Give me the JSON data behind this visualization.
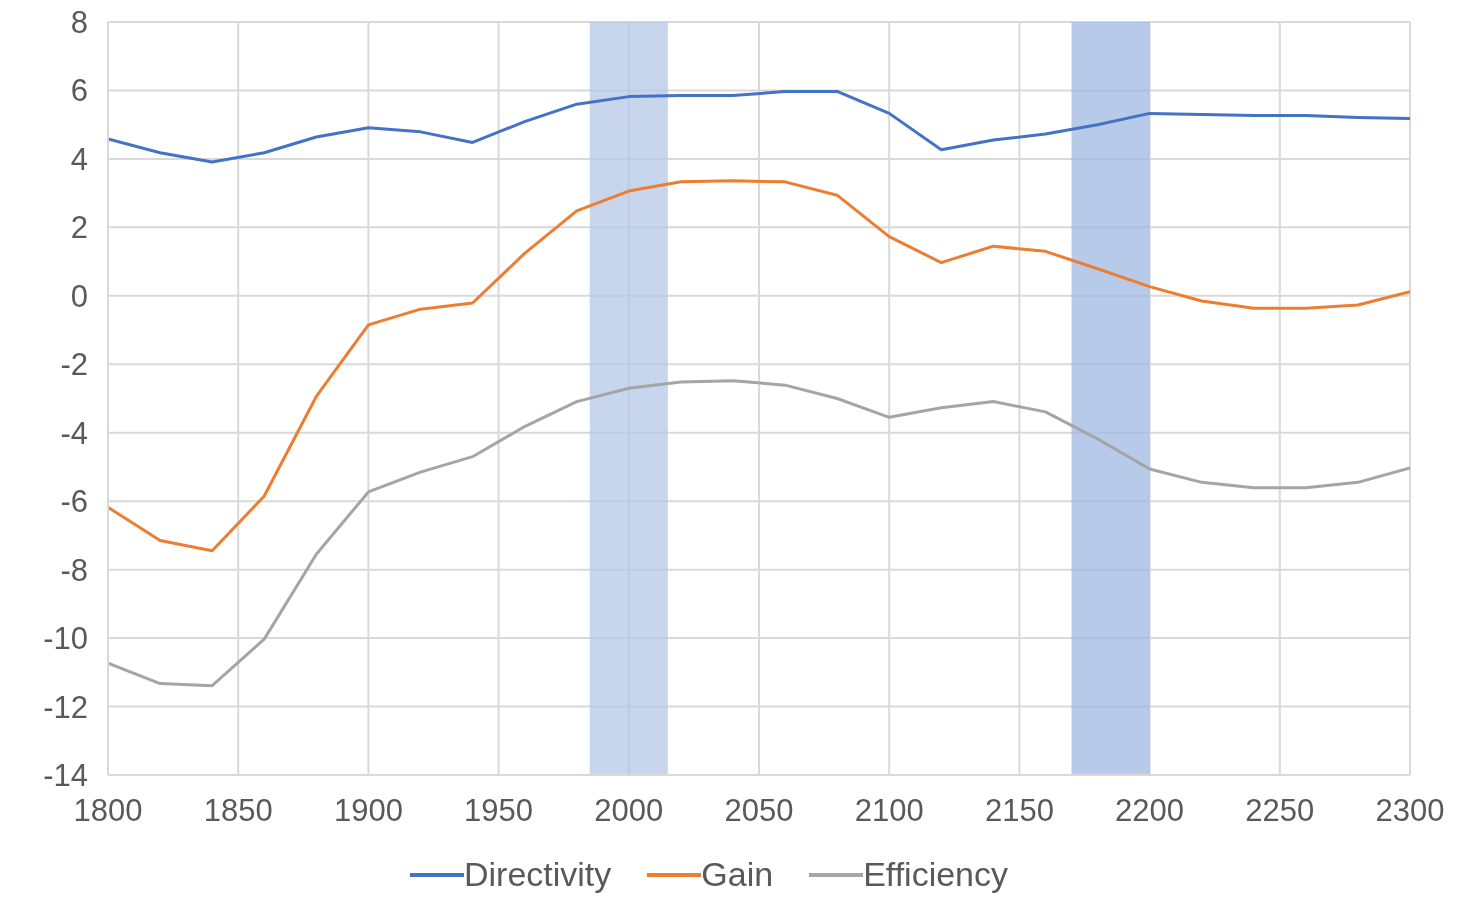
{
  "chart_data": {
    "type": "line",
    "x": [
      1800,
      1820,
      1840,
      1860,
      1880,
      1900,
      1920,
      1940,
      1960,
      1980,
      2000,
      2020,
      2040,
      2060,
      2080,
      2100,
      2120,
      2140,
      2160,
      2180,
      2200,
      2220,
      2240,
      2260,
      2280,
      2300
    ],
    "series": [
      {
        "name": "Directivity",
        "color": "#4472c4",
        "values": [
          4.58,
          4.18,
          3.91,
          4.18,
          4.64,
          4.91,
          4.79,
          4.48,
          5.09,
          5.6,
          5.82,
          5.85,
          5.85,
          5.97,
          5.97,
          5.33,
          4.27,
          4.55,
          4.73,
          5.0,
          5.33,
          5.3,
          5.27,
          5.27,
          5.21,
          5.18
        ]
      },
      {
        "name": "Gain",
        "color": "#ed7d31",
        "values": [
          -6.18,
          -7.15,
          -7.45,
          -5.85,
          -2.94,
          -0.85,
          -0.39,
          -0.21,
          1.24,
          2.48,
          3.06,
          3.33,
          3.36,
          3.33,
          2.94,
          1.73,
          0.97,
          1.45,
          1.3,
          0.79,
          0.27,
          -0.15,
          -0.36,
          -0.36,
          -0.27,
          0.12
        ]
      },
      {
        "name": "Efficiency",
        "color": "#a5a5a5",
        "values": [
          -10.73,
          -11.33,
          -11.39,
          -10.03,
          -7.55,
          -5.73,
          -5.15,
          -4.7,
          -3.82,
          -3.09,
          -2.7,
          -2.52,
          -2.48,
          -2.61,
          -3.0,
          -3.55,
          -3.27,
          -3.09,
          -3.39,
          -4.18,
          -5.06,
          -5.45,
          -5.61,
          -5.61,
          -5.45,
          -5.03
        ]
      }
    ],
    "xlim": [
      1800,
      2300
    ],
    "xticks": [
      1800,
      1850,
      1900,
      1950,
      2000,
      2050,
      2100,
      2150,
      2200,
      2250,
      2300
    ],
    "ylim": [
      -14,
      8
    ],
    "yticks": [
      -14,
      -12,
      -10,
      -8,
      -6,
      -4,
      -2,
      0,
      2,
      4,
      6,
      8
    ],
    "bands": [
      {
        "axis": "x",
        "from": 1985,
        "to": 2015,
        "color": "#b4c7e7"
      },
      {
        "axis": "x",
        "from": 2170,
        "to": 2200,
        "color": "#9fb8e2"
      }
    ],
    "grid": true,
    "legend": "bottom",
    "marker": "none",
    "line_style": "solid"
  }
}
